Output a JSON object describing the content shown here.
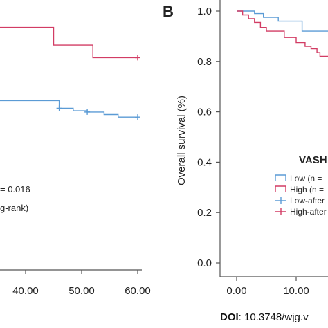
{
  "chart_data": [
    {
      "type": "line",
      "panel": "A (partial)",
      "x_ticks": [
        "40.00",
        "50.00",
        "60.00"
      ],
      "x_tick_values": [
        40,
        50,
        60
      ],
      "ylim": [
        0,
        1
      ],
      "xlim": [
        30,
        60
      ],
      "annotations": {
        "p_value": "= 0.016",
        "test": "g-rank)"
      },
      "series": [
        {
          "color": "#d23c64",
          "steps": [
            [
              30,
              0.96
            ],
            [
              45,
              0.96
            ],
            [
              45,
              0.89
            ],
            [
              52,
              0.89
            ],
            [
              52,
              0.84
            ],
            [
              60,
              0.84
            ]
          ],
          "censors": [
            [
              60,
              0.84
            ]
          ]
        },
        {
          "color": "#5b9bd5",
          "steps": [
            [
              30,
              0.685
            ],
            [
              32,
              0.685
            ],
            [
              32,
              0.67
            ],
            [
              46,
              0.67
            ],
            [
              46,
              0.64
            ],
            [
              48.5,
              0.64
            ],
            [
              48.5,
              0.63
            ],
            [
              51,
              0.63
            ],
            [
              51,
              0.625
            ],
            [
              54,
              0.625
            ],
            [
              54,
              0.615
            ],
            [
              56.5,
              0.615
            ],
            [
              56.5,
              0.605
            ],
            [
              60,
              0.605
            ]
          ],
          "censors": [
            [
              46,
              0.64
            ],
            [
              51,
              0.625
            ],
            [
              60,
              0.605
            ]
          ]
        }
      ]
    },
    {
      "type": "line",
      "panel_label": "B",
      "ylabel": "Overall survival (%)",
      "y_ticks": [
        "0.0",
        "0.2",
        "0.4",
        "0.6",
        "0.8",
        "1.0"
      ],
      "y_tick_values": [
        0,
        0.2,
        0.4,
        0.6,
        0.8,
        1.0
      ],
      "x_ticks": [
        "0.00",
        "10.00"
      ],
      "x_tick_values": [
        0,
        10
      ],
      "ylim": [
        0,
        1
      ],
      "legend": {
        "title": "VASH",
        "entries": [
          "Low (n =",
          "High (n =",
          "Low-after",
          "High-after"
        ]
      },
      "series": [
        {
          "name": "Low (n =",
          "color": "#5b9bd5",
          "steps": [
            [
              0,
              1.0
            ],
            [
              3,
              1.0
            ],
            [
              3,
              0.99
            ],
            [
              4.5,
              0.99
            ],
            [
              4.5,
              0.975
            ],
            [
              7,
              0.975
            ],
            [
              7,
              0.96
            ],
            [
              11,
              0.96
            ],
            [
              11,
              0.92
            ],
            [
              16.5,
              0.92
            ],
            [
              16.5,
              0.87
            ],
            [
              17.5,
              0.87
            ]
          ]
        },
        {
          "name": "High (n =",
          "color": "#d23c64",
          "steps": [
            [
              0,
              1.0
            ],
            [
              1,
              1.0
            ],
            [
              1,
              0.985
            ],
            [
              2,
              0.985
            ],
            [
              2,
              0.97
            ],
            [
              3,
              0.97
            ],
            [
              3,
              0.955
            ],
            [
              4,
              0.955
            ],
            [
              4,
              0.935
            ],
            [
              5,
              0.935
            ],
            [
              5,
              0.92
            ],
            [
              8,
              0.92
            ],
            [
              8,
              0.895
            ],
            [
              10,
              0.895
            ],
            [
              10,
              0.875
            ],
            [
              11.5,
              0.875
            ],
            [
              11.5,
              0.86
            ],
            [
              12.5,
              0.86
            ],
            [
              12.5,
              0.85
            ],
            [
              13.5,
              0.85
            ],
            [
              13.5,
              0.835
            ],
            [
              14,
              0.835
            ],
            [
              14,
              0.82
            ],
            [
              16.5,
              0.82
            ],
            [
              16.5,
              0.805
            ],
            [
              17.5,
              0.805
            ]
          ]
        }
      ]
    }
  ],
  "footer": {
    "doi_label": "DOI",
    "doi_value": ": 10.3748/wjg.v"
  },
  "colors": {
    "low": "#5b9bd5",
    "high": "#d23c64",
    "axis": "#555555"
  }
}
